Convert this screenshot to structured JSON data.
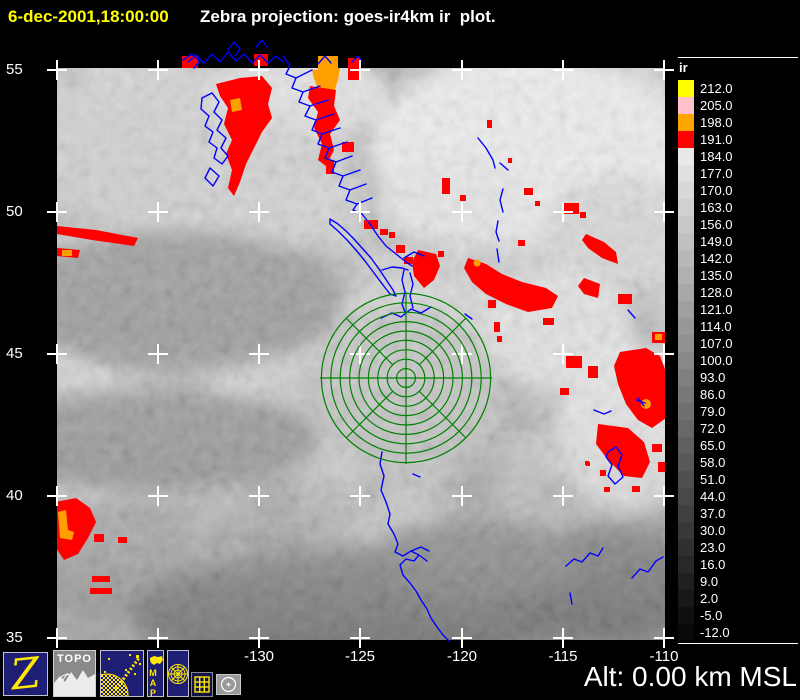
{
  "header": {
    "timestamp": "6-dec-2001,18:00:00",
    "title": "Zebra projection: goes-ir4km ir  plot."
  },
  "axes": {
    "lat_labels": [
      "55",
      "50",
      "45",
      "40",
      "35"
    ],
    "lon_labels": [
      "-130",
      "-125",
      "-120",
      "-115",
      "-110"
    ]
  },
  "colorbar": {
    "label": "ir",
    "entries": [
      {
        "value": "212.0",
        "color": "#ffff00"
      },
      {
        "value": "205.0",
        "color": "#ffc0cb"
      },
      {
        "value": "198.0",
        "color": "#ffa500"
      },
      {
        "value": "191.0",
        "color": "#ff0000"
      },
      {
        "value": "184.0",
        "color": "#e8e8e8"
      },
      {
        "value": "177.0",
        "color": "#e0e0e0"
      },
      {
        "value": "170.0",
        "color": "#d8d8d8"
      },
      {
        "value": "163.0",
        "color": "#d0d0d0"
      },
      {
        "value": "156.0",
        "color": "#c8c8c8"
      },
      {
        "value": "149.0",
        "color": "#c0c0c0"
      },
      {
        "value": "142.0",
        "color": "#b8b8b8"
      },
      {
        "value": "135.0",
        "color": "#b0b0b0"
      },
      {
        "value": "128.0",
        "color": "#a8a8a8"
      },
      {
        "value": "121.0",
        "color": "#a0a0a0"
      },
      {
        "value": "114.0",
        "color": "#989898"
      },
      {
        "value": "107.0",
        "color": "#909090"
      },
      {
        "value": "100.0",
        "color": "#888888"
      },
      {
        "value": "93.0",
        "color": "#808080"
      },
      {
        "value": "86.0",
        "color": "#787878"
      },
      {
        "value": "79.0",
        "color": "#707070"
      },
      {
        "value": "72.0",
        "color": "#686868"
      },
      {
        "value": "65.0",
        "color": "#606060"
      },
      {
        "value": "58.0",
        "color": "#585858"
      },
      {
        "value": "51.0",
        "color": "#505050"
      },
      {
        "value": "44.0",
        "color": "#484848"
      },
      {
        "value": "37.0",
        "color": "#404040"
      },
      {
        "value": "30.0",
        "color": "#383838"
      },
      {
        "value": "23.0",
        "color": "#303030"
      },
      {
        "value": "16.0",
        "color": "#282828"
      },
      {
        "value": "9.0",
        "color": "#202020"
      },
      {
        "value": "2.0",
        "color": "#181818"
      },
      {
        "value": "-5.0",
        "color": "#101010"
      },
      {
        "value": "-12.0",
        "color": "#080808"
      }
    ]
  },
  "status": {
    "altitude": "Alt: 0.00 km MSL"
  },
  "toolbar": {
    "zebra_label": "Z",
    "topo_label": "TOPO",
    "map_label": "MAP"
  },
  "colors": {
    "background": "#000000",
    "timestamp_yellow": "#ffff00",
    "ir_red": "#ff0000",
    "ir_orange": "#ffa000",
    "coastline_blue": "#0000ff",
    "range_ring_green": "#008200",
    "axis_white": "#ffffff",
    "button_navy": "#1e1e74",
    "icon_yellow": "#ffe800"
  }
}
